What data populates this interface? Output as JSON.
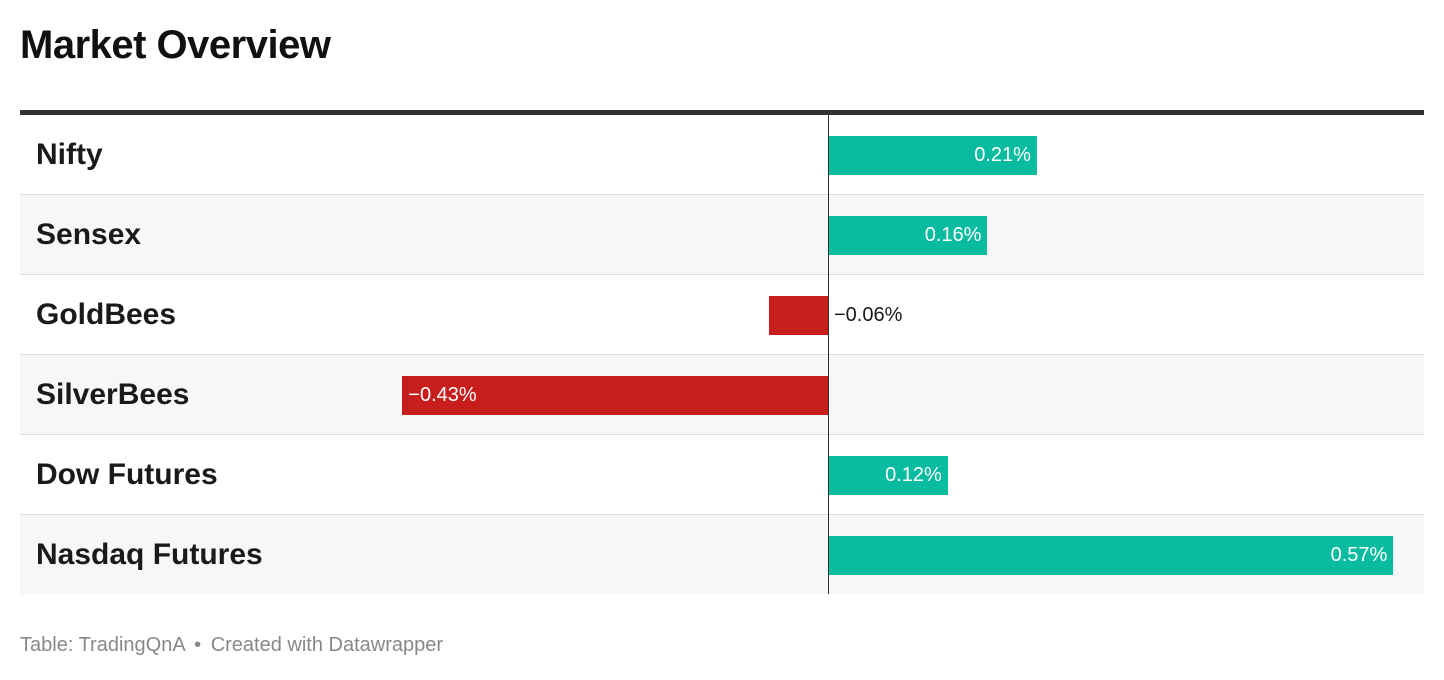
{
  "title": "Market Overview",
  "footer": {
    "source": "Table: TradingQnA",
    "separator": "•",
    "credit": "Created with Datawrapper"
  },
  "colors": {
    "positive": "#09bb9f",
    "negative": "#c71e1d"
  },
  "chart_data": {
    "type": "bar",
    "orientation": "horizontal",
    "categories": [
      "Nifty",
      "Sensex",
      "GoldBees",
      "SilverBees",
      "Dow Futures",
      "Nasdaq Futures"
    ],
    "values": [
      0.21,
      0.16,
      -0.06,
      -0.43,
      0.12,
      0.57
    ],
    "value_labels": [
      "0.21%",
      "0.16%",
      "−0.06%",
      "−0.43%",
      "0.12%",
      "0.57%"
    ],
    "unit": "%",
    "xlim": [
      -0.43,
      0.57
    ],
    "legend": "none",
    "grid": false
  }
}
